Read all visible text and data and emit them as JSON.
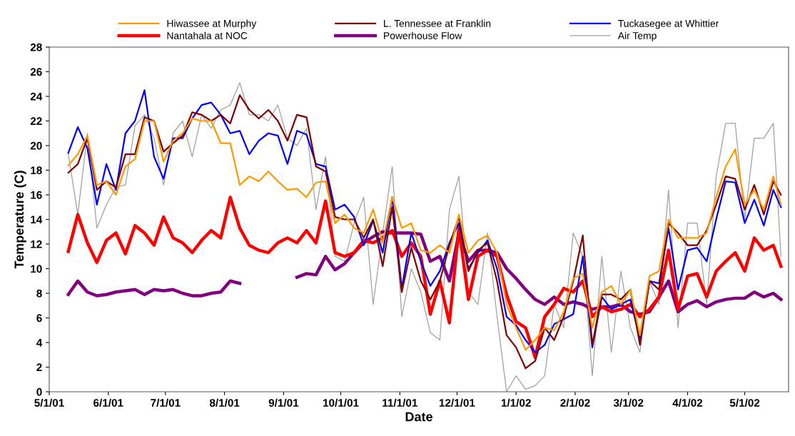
{
  "chart_data": {
    "type": "line",
    "xlabel": "Date",
    "ylabel": "Temperature (C)",
    "x": [
      "2001-05-11",
      "2001-05-16",
      "2001-05-21",
      "2001-05-26",
      "2001-05-31",
      "2001-06-05",
      "2001-06-10",
      "2001-06-15",
      "2001-06-20",
      "2001-06-25",
      "2001-06-30",
      "2001-07-05",
      "2001-07-10",
      "2001-07-15",
      "2001-07-20",
      "2001-07-25",
      "2001-07-30",
      "2001-08-04",
      "2001-08-09",
      "2001-08-14",
      "2001-08-19",
      "2001-08-24",
      "2001-08-29",
      "2001-09-03",
      "2001-09-08",
      "2001-09-13",
      "2001-09-18",
      "2001-09-23",
      "2001-09-28",
      "2001-10-03",
      "2001-10-08",
      "2001-10-13",
      "2001-10-18",
      "2001-10-23",
      "2001-10-28",
      "2001-11-02",
      "2001-11-07",
      "2001-11-12",
      "2001-11-17",
      "2001-11-22",
      "2001-11-27",
      "2001-12-02",
      "2001-12-07",
      "2001-12-12",
      "2001-12-17",
      "2001-12-22",
      "2001-12-27",
      "2002-01-01",
      "2002-01-06",
      "2002-01-11",
      "2002-01-16",
      "2002-01-21",
      "2002-01-26",
      "2002-01-31",
      "2002-02-05",
      "2002-02-10",
      "2002-02-15",
      "2002-02-20",
      "2002-02-25",
      "2002-03-02",
      "2002-03-07",
      "2002-03-12",
      "2002-03-17",
      "2002-03-22",
      "2002-03-27",
      "2002-04-01",
      "2002-04-06",
      "2002-04-11",
      "2002-04-16",
      "2002-04-21",
      "2002-04-26",
      "2002-05-01",
      "2002-05-06",
      "2002-05-11",
      "2002-05-16",
      "2002-05-20"
    ],
    "series": [
      {
        "name": "Hiwassee at Murphy",
        "color": "#ff9900",
        "values": [
          18.4,
          19.3,
          20.8,
          16.8,
          17.1,
          16.0,
          18.3,
          18.9,
          22.0,
          22.0,
          18.7,
          20.4,
          21.0,
          22.2,
          22.0,
          22.0,
          20.2,
          20.2,
          16.8,
          17.5,
          17.1,
          17.9,
          17.1,
          16.4,
          16.5,
          15.8,
          17.0,
          17.1,
          13.7,
          14.4,
          13.3,
          12.9,
          14.8,
          12.1,
          15.8,
          13.3,
          13.7,
          11.5,
          11.3,
          11.9,
          11.3,
          14.4,
          11.3,
          12.3,
          12.7,
          11.3,
          7.1,
          5.2,
          3.4,
          4.2,
          5.2,
          5.0,
          6.5,
          9.2,
          9.6,
          5.2,
          8.1,
          8.6,
          7.1,
          8.3,
          4.6,
          9.4,
          9.8,
          14.0,
          12.5,
          12.5,
          12.5,
          12.9,
          15.8,
          18.3,
          19.7,
          15.2,
          16.4,
          14.8,
          17.5,
          15.2
        ]
      },
      {
        "name": "L. Tennessee at Franklin",
        "color": "#800000",
        "values": [
          17.8,
          18.5,
          20.6,
          16.4,
          17.1,
          16.6,
          19.3,
          19.3,
          22.3,
          22.0,
          19.5,
          20.2,
          20.8,
          22.7,
          22.5,
          22.0,
          22.5,
          21.8,
          24.1,
          22.9,
          22.2,
          22.9,
          22.0,
          20.4,
          22.5,
          22.3,
          18.3,
          17.9,
          14.2,
          14.0,
          14.0,
          12.5,
          14.0,
          10.2,
          15.0,
          8.1,
          11.7,
          9.0,
          7.5,
          9.0,
          11.9,
          14.2,
          9.8,
          11.5,
          12.1,
          9.0,
          4.6,
          3.6,
          1.9,
          2.5,
          5.2,
          4.2,
          6.1,
          9.0,
          12.7,
          3.8,
          7.9,
          7.9,
          7.5,
          8.3,
          3.8,
          9.0,
          8.3,
          13.7,
          12.9,
          11.9,
          11.9,
          13.1,
          15.2,
          17.5,
          17.3,
          14.8,
          16.8,
          14.4,
          17.1,
          16.0
        ]
      },
      {
        "name": "Tuckasegee at Whittier",
        "color": "#0000ff",
        "values": [
          19.4,
          21.5,
          19.8,
          15.2,
          18.5,
          16.4,
          21.0,
          22.0,
          24.5,
          19.1,
          17.3,
          20.6,
          20.6,
          22.2,
          23.3,
          23.5,
          22.5,
          21.0,
          21.2,
          19.3,
          20.4,
          21.0,
          20.8,
          18.5,
          21.2,
          20.9,
          18.5,
          18.3,
          14.8,
          15.2,
          14.2,
          11.9,
          13.9,
          11.3,
          15.8,
          8.4,
          12.9,
          10.6,
          8.6,
          9.8,
          12.1,
          13.7,
          10.0,
          11.3,
          12.3,
          10.0,
          6.1,
          5.4,
          4.2,
          3.2,
          3.8,
          5.5,
          5.9,
          6.3,
          11.0,
          3.6,
          7.7,
          6.7,
          7.1,
          7.5,
          4.2,
          9.0,
          8.8,
          13.3,
          8.3,
          11.5,
          11.7,
          10.6,
          14.0,
          17.1,
          17.0,
          13.7,
          15.6,
          13.5,
          16.4,
          15.0
        ]
      },
      {
        "name": "Nantahala at NOC",
        "color": "#ff0000",
        "values": [
          11.4,
          14.4,
          12.1,
          10.5,
          12.3,
          12.9,
          11.2,
          13.5,
          12.9,
          11.9,
          14.2,
          12.5,
          12.1,
          11.3,
          12.3,
          13.1,
          12.5,
          15.8,
          13.3,
          11.9,
          11.5,
          11.3,
          12.1,
          12.5,
          12.1,
          13.1,
          12.1,
          15.5,
          11.3,
          11.0,
          11.3,
          12.3,
          12.1,
          12.5,
          13.1,
          11.0,
          12.1,
          11.0,
          6.3,
          9.0,
          5.6,
          13.3,
          7.5,
          11.0,
          11.5,
          11.0,
          7.9,
          5.7,
          5.2,
          2.8,
          6.1,
          7.1,
          8.4,
          8.1,
          9.0,
          6.1,
          6.9,
          6.5,
          6.7,
          7.1,
          6.1,
          6.7,
          7.7,
          11.5,
          6.7,
          9.4,
          9.6,
          7.7,
          9.8,
          10.6,
          11.3,
          9.8,
          12.5,
          11.5,
          11.9,
          10.2
        ]
      },
      {
        "name": "Powerhouse Flow",
        "color": "#800080",
        "values": [
          7.9,
          9.0,
          8.1,
          7.8,
          7.9,
          8.1,
          8.2,
          8.3,
          7.9,
          8.3,
          8.2,
          8.3,
          8.0,
          7.8,
          7.8,
          8.0,
          8.1,
          9.0,
          8.8,
          null,
          null,
          null,
          null,
          null,
          9.3,
          9.6,
          9.5,
          11.0,
          9.9,
          10.4,
          11.3,
          12.1,
          12.6,
          13.0,
          12.9,
          12.9,
          12.9,
          12.8,
          10.6,
          11.0,
          9.0,
          12.9,
          10.6,
          11.5,
          11.5,
          11.3,
          10.0,
          9.2,
          8.3,
          7.5,
          7.1,
          7.7,
          7.1,
          7.3,
          7.1,
          6.7,
          6.9,
          6.9,
          7.1,
          6.5,
          6.3,
          6.5,
          7.7,
          9.0,
          6.5,
          7.1,
          7.4,
          6.9,
          7.3,
          7.5,
          7.6,
          7.6,
          8.1,
          7.7,
          8.0,
          7.5
        ]
      },
      {
        "name": "Air Temp",
        "color": "#a0a0a0",
        "values": [
          19.3,
          14.4,
          21.0,
          13.3,
          15.2,
          16.6,
          16.8,
          21.6,
          22.5,
          20.6,
          16.8,
          21.0,
          22.0,
          19.1,
          22.5,
          21.4,
          22.9,
          23.3,
          25.1,
          22.5,
          22.5,
          22.0,
          23.3,
          20.6,
          20.0,
          21.4,
          14.8,
          19.1,
          11.0,
          10.6,
          13.7,
          15.8,
          7.1,
          12.9,
          18.3,
          6.1,
          10.0,
          8.1,
          4.8,
          4.2,
          14.8,
          17.5,
          8.1,
          7.1,
          12.9,
          6.1,
          0.0,
          1.3,
          0.2,
          0.5,
          1.3,
          7.1,
          5.2,
          12.9,
          11.0,
          1.3,
          11.0,
          3.2,
          9.8,
          5.2,
          3.2,
          9.0,
          7.1,
          16.4,
          5.2,
          13.7,
          13.7,
          7.1,
          17.5,
          21.8,
          21.8,
          14.0,
          20.6,
          20.6,
          21.8,
          11.0
        ]
      }
    ],
    "xlim": [
      "2001-05-01",
      "2002-05-24"
    ],
    "xticks": [
      {
        "value": "2001-05-01",
        "label": "5/1/01"
      },
      {
        "value": "2001-06-01",
        "label": "6/1/01"
      },
      {
        "value": "2001-07-01",
        "label": "7/1/01"
      },
      {
        "value": "2001-08-01",
        "label": "8/1/01"
      },
      {
        "value": "2001-09-01",
        "label": "9/1/01"
      },
      {
        "value": "2001-10-01",
        "label": "10/1/01"
      },
      {
        "value": "2001-11-01",
        "label": "11/1/01"
      },
      {
        "value": "2001-12-01",
        "label": "12/1/01"
      },
      {
        "value": "2002-01-01",
        "label": "1/1/02"
      },
      {
        "value": "2002-02-01",
        "label": "2/1/02"
      },
      {
        "value": "2002-03-01",
        "label": "3/1/02"
      },
      {
        "value": "2002-04-01",
        "label": "4/1/02"
      },
      {
        "value": "2002-05-01",
        "label": "5/1/02"
      }
    ],
    "ylim": [
      0,
      28
    ],
    "yticks": [
      0,
      2,
      4,
      6,
      8,
      10,
      12,
      14,
      16,
      18,
      20,
      22,
      24,
      26,
      28
    ],
    "grid": false,
    "legend": "top",
    "marker": "none",
    "line_style": "solid"
  }
}
